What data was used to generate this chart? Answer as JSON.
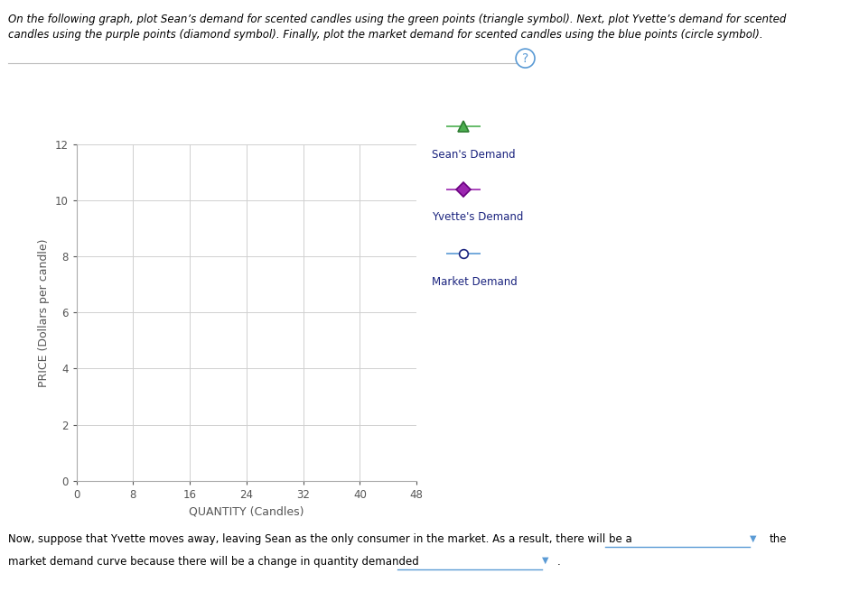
{
  "xlabel": "QUANTITY (Candles)",
  "ylabel": "PRICE (Dollars per candle)",
  "xlim": [
    0,
    48
  ],
  "ylim": [
    0,
    12
  ],
  "xticks": [
    0,
    8,
    16,
    24,
    32,
    40,
    48
  ],
  "yticks": [
    0,
    2,
    4,
    6,
    8,
    10,
    12
  ],
  "grid_color": "#d0d0d0",
  "background_color": "#ffffff",
  "legend_entries": [
    {
      "label": "Sean's Demand",
      "color": "#4caf50",
      "marker": "^",
      "edge_color": "#2e7d32"
    },
    {
      "label": "Yvette's Demand",
      "color": "#9c27b0",
      "marker": "D",
      "edge_color": "#6a0080"
    },
    {
      "label": "Market Demand",
      "color": "#5b9bd5",
      "marker": "o",
      "face_color": "#ffffff",
      "edge_color": "#1a237e"
    }
  ],
  "title_line1": "On the following graph, plot Sean’s demand for scented candles using the green points (triangle symbol). Next, plot Yvette’s demand for scented",
  "title_line2": "candles using the purple points (diamond symbol). Finally, plot the market demand for scented candles using the blue points (circle symbol).",
  "bottom_line1_pre": "Now, suppose that Yvette moves away, leaving Sean as the only consumer in the market. As a result, there will be a",
  "bottom_line1_post": "the",
  "bottom_line2_pre": "market demand curve because there will be a change in quantity demanded",
  "text_color": "#000000",
  "label_color": "#666666",
  "legend_label_color": "#1a237e",
  "axis_label_color": "#555555",
  "dropdown_color": "#5b9bd5",
  "separator_color": "#bbbbbb"
}
